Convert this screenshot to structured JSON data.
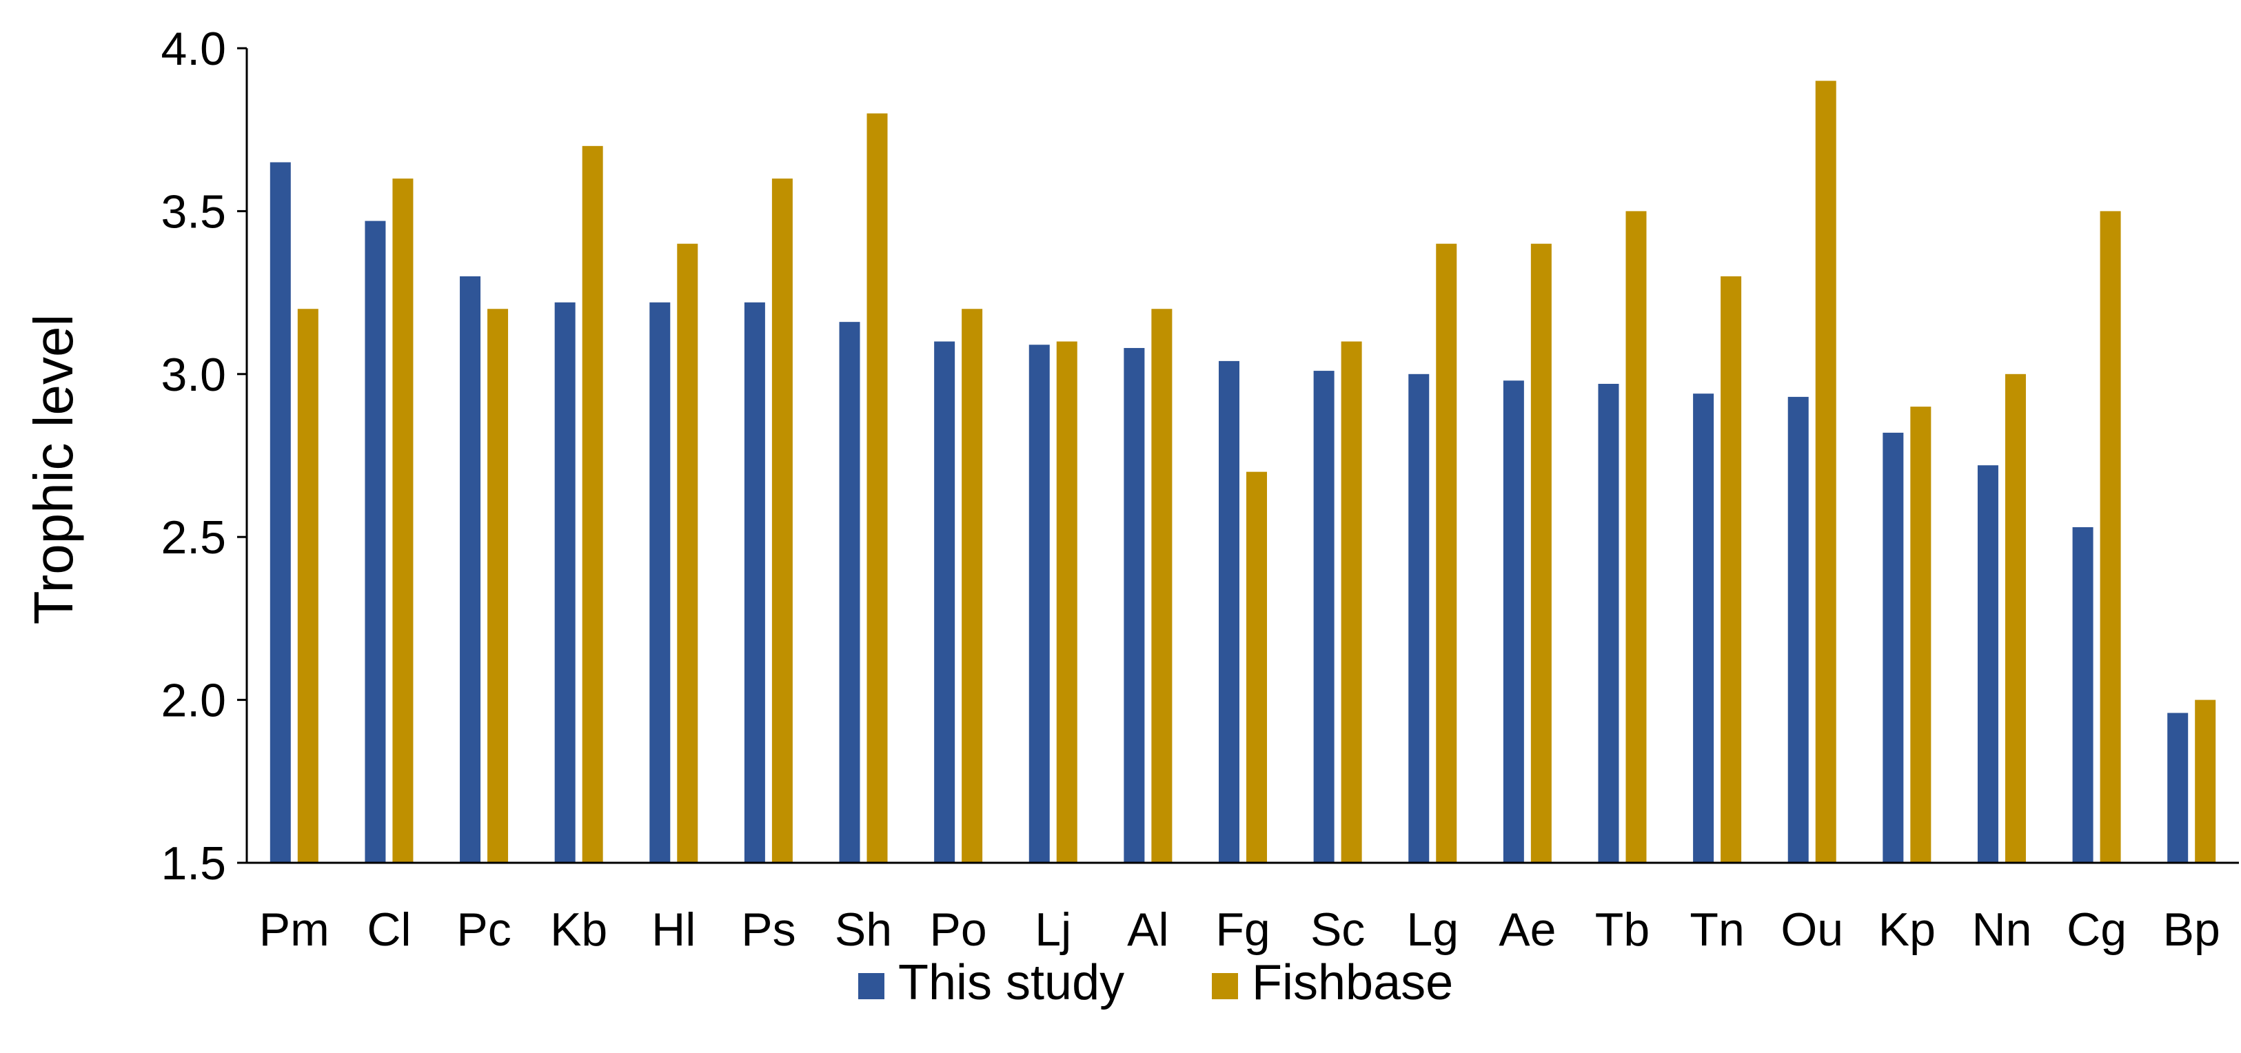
{
  "chart_data": {
    "type": "bar",
    "title": "",
    "xlabel": "",
    "ylabel": "Trophic level",
    "ylim": [
      1.5,
      4.0
    ],
    "yticks": [
      1.5,
      2.0,
      2.5,
      3.0,
      3.5,
      4.0
    ],
    "ytick_labels": [
      "1.5",
      "2.0",
      "2.5",
      "3.0",
      "3.5",
      "4.0"
    ],
    "grid": false,
    "legend_position": "bottom-center",
    "categories": [
      "Pm",
      "Cl",
      "Pc",
      "Kb",
      "Hl",
      "Ps",
      "Sh",
      "Po",
      "Lj",
      "Al",
      "Fg",
      "Sc",
      "Lg",
      "Ae",
      "Tb",
      "Tn",
      "Ou",
      "Kp",
      "Nn",
      "Cg",
      "Bp"
    ],
    "series": [
      {
        "name": "This study",
        "color": "#2f5597",
        "values": [
          3.65,
          3.47,
          3.3,
          3.22,
          3.22,
          3.22,
          3.16,
          3.1,
          3.09,
          3.08,
          3.04,
          3.01,
          3.0,
          2.98,
          2.97,
          2.94,
          2.93,
          2.82,
          2.72,
          2.53,
          1.96
        ]
      },
      {
        "name": "Fishbase",
        "color": "#bf9000",
        "values": [
          3.2,
          3.6,
          3.2,
          3.7,
          3.4,
          3.6,
          3.8,
          3.2,
          3.1,
          3.2,
          2.7,
          3.1,
          3.4,
          3.4,
          3.5,
          3.3,
          3.9,
          2.9,
          3.0,
          3.5,
          2.0
        ]
      }
    ]
  }
}
